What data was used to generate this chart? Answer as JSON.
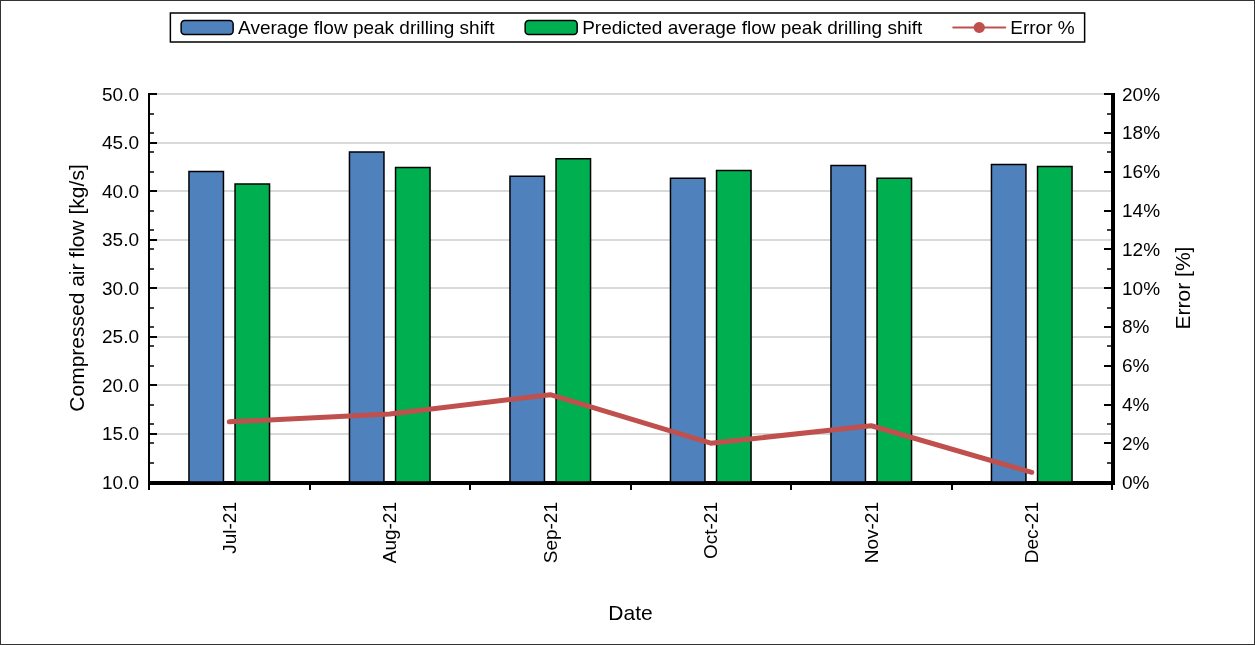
{
  "chart_data": {
    "type": "bar",
    "xlabel": "Date",
    "ylabel": "Compressed air flow [kg/s]",
    "y2label": "Error [%]",
    "categories": [
      "Jul-21",
      "Aug-21",
      "Sep-21",
      "Oct-21",
      "Nov-21",
      "Dec-21"
    ],
    "series": [
      {
        "name": "Average flow peak drilling shift",
        "color": "#4f81bd",
        "values": [
          42.1,
          44.1,
          41.6,
          41.4,
          42.7,
          42.8
        ]
      },
      {
        "name": "Predicted average flow peak drilling shift",
        "color": "#00b050",
        "values": [
          40.8,
          42.5,
          43.4,
          42.2,
          41.4,
          42.6
        ]
      },
      {
        "name": "Error %",
        "type": "line",
        "axis": "y2",
        "color": "#c0504d",
        "marker": "none",
        "values": [
          3.1,
          3.5,
          4.5,
          2.0,
          2.9,
          0.5
        ]
      }
    ],
    "ylim": [
      10,
      50
    ],
    "yticks": [
      {
        "value": 10,
        "label": "10.0"
      },
      {
        "value": 15,
        "label": "15.0"
      },
      {
        "value": 20,
        "label": "20.0"
      },
      {
        "value": 25,
        "label": "25.0"
      },
      {
        "value": 30,
        "label": "30.0"
      },
      {
        "value": 35,
        "label": "35.0"
      },
      {
        "value": 40,
        "label": "40.0"
      },
      {
        "value": 45,
        "label": "45.0"
      },
      {
        "value": 50,
        "label": "50.0"
      }
    ],
    "y2lim": [
      0,
      20
    ],
    "y2ticks": [
      {
        "value": 0,
        "label": "0%"
      },
      {
        "value": 2,
        "label": "2%"
      },
      {
        "value": 4,
        "label": "4%"
      },
      {
        "value": 6,
        "label": "6%"
      },
      {
        "value": 8,
        "label": "8%"
      },
      {
        "value": 10,
        "label": "10%"
      },
      {
        "value": 12,
        "label": "12%"
      },
      {
        "value": 14,
        "label": "14%"
      },
      {
        "value": 16,
        "label": "16%"
      },
      {
        "value": 18,
        "label": "18%"
      },
      {
        "value": 20,
        "label": "20%"
      }
    ],
    "grid": "y",
    "legend": "top"
  }
}
